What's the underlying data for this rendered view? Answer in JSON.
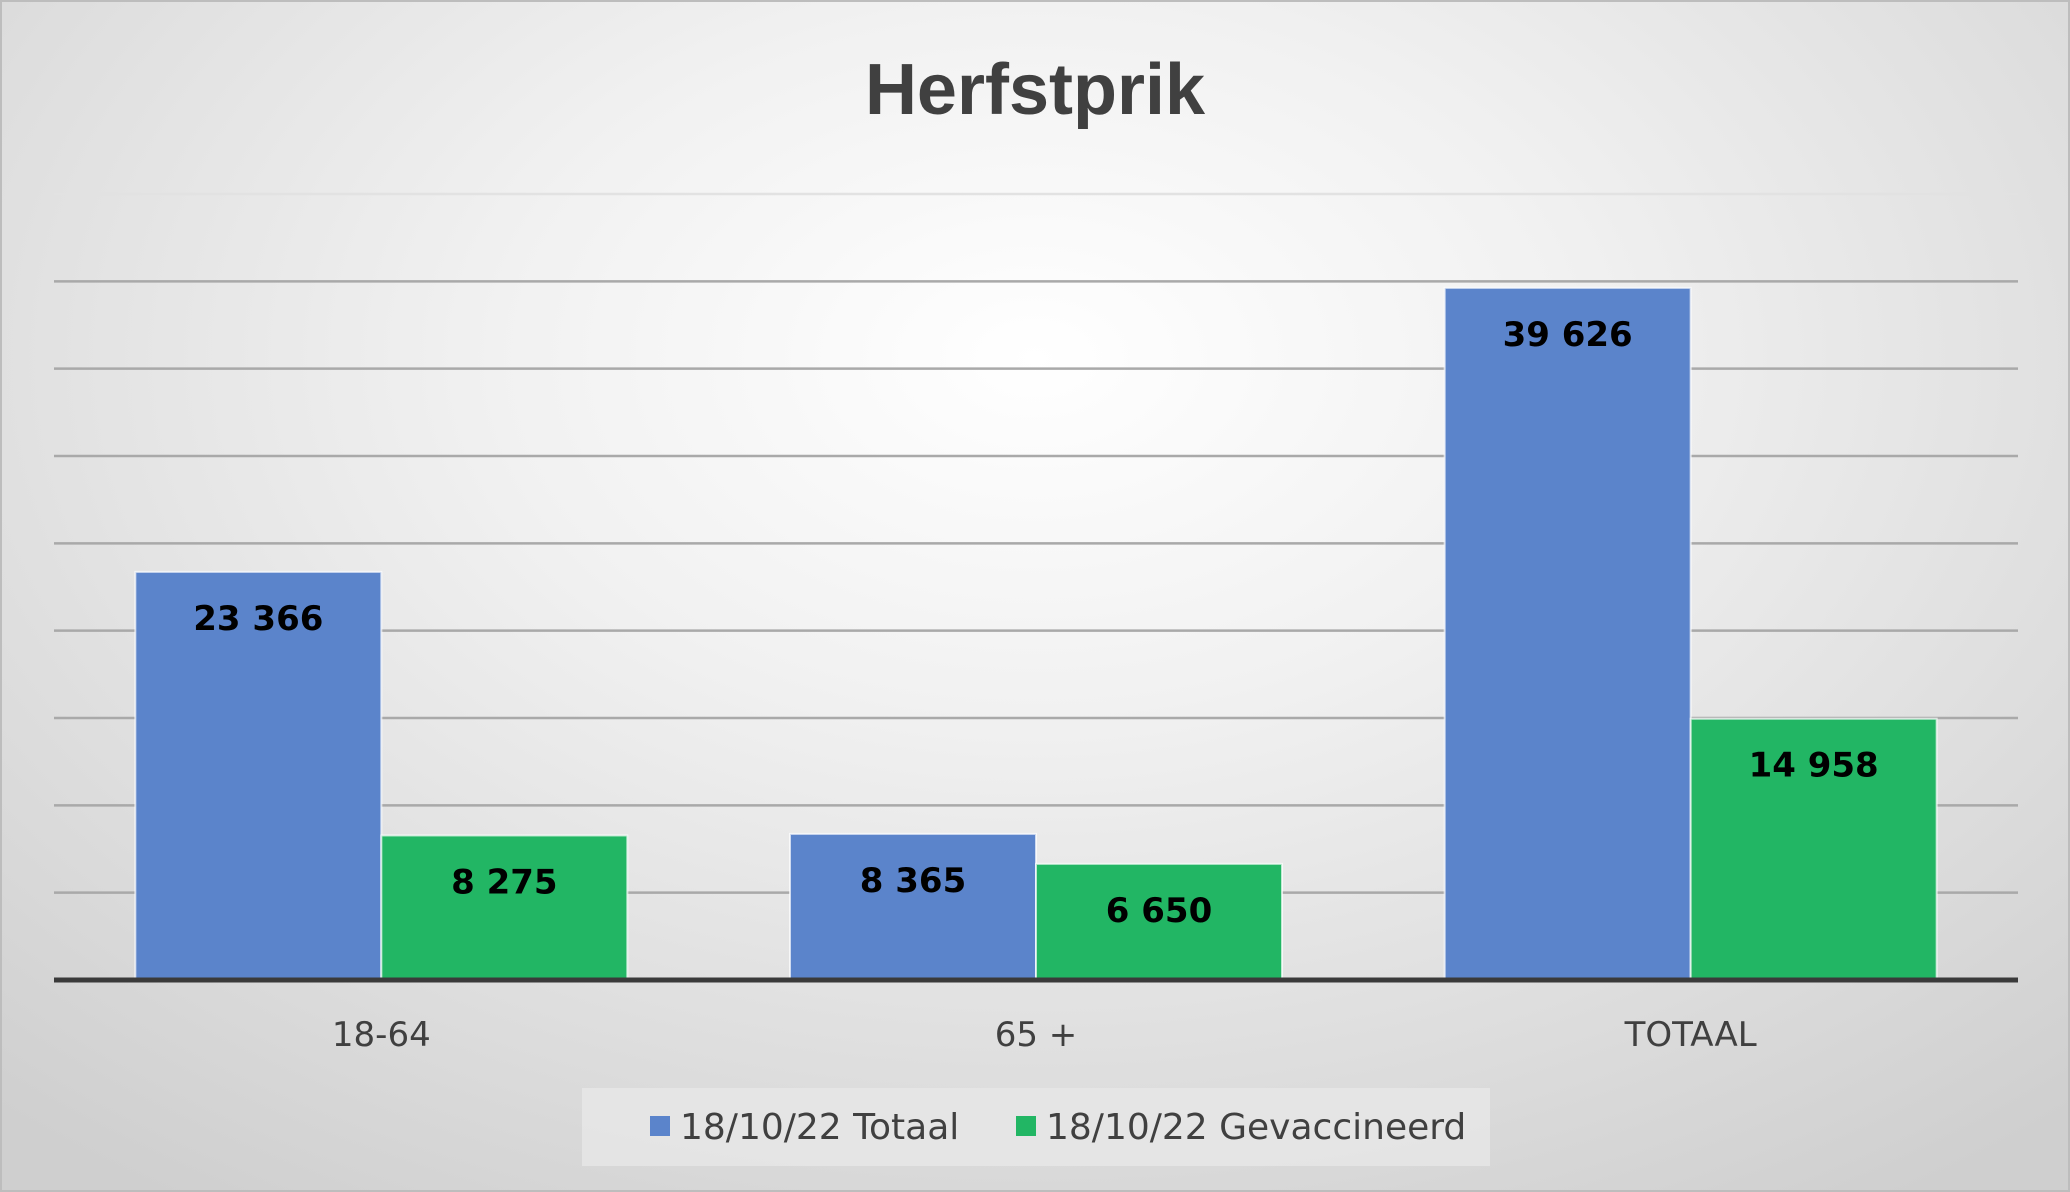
{
  "chart_data": {
    "type": "bar",
    "title": "Herfstprik",
    "xlabel": "",
    "ylabel": "",
    "categories": [
      "18-64",
      "65 +",
      "TOTAAL"
    ],
    "series": [
      {
        "name": "18/10/22 Totaal",
        "color": "#5b84cb",
        "values": [
          23366,
          8365,
          39626
        ],
        "labels": [
          "23 366",
          "8 365",
          "39 626"
        ]
      },
      {
        "name": "18/10/22 Gevaccineerd",
        "color": "#22b664",
        "values": [
          8275,
          6650,
          14958
        ],
        "labels": [
          "8 275",
          "6 650",
          "14 958"
        ]
      }
    ],
    "ylim": [
      0,
      45000
    ],
    "ytick_step": 5000,
    "y_tick_labels_shown": false,
    "grid": true,
    "legend_position": "bottom"
  }
}
